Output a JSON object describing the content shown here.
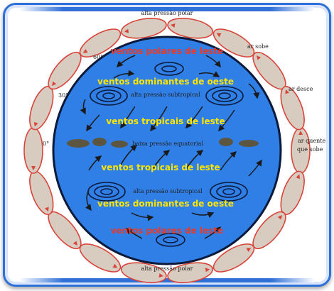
{
  "labels": {
    "top_pressure": "alta pressão polar",
    "bottom_pressure": "alta pressão polar",
    "air_rises": "ar sobe",
    "air_descends": "ar desce",
    "warm_air_rises_1": "ar quente",
    "warm_air_rises_2": "que sobe",
    "lat_60_top": "60°",
    "lat_30_top": "30°",
    "lat_0": "0°",
    "polar_winds_top": "ventos polares de leste",
    "westerlies_top": "ventos dominantes de oeste",
    "subtropical_high_top": "alta pressão subtropical",
    "trade_winds_top": "ventos tropicais de leste",
    "equatorial_low": "baixa pressão equatorial",
    "trade_winds_bottom": "ventos tropicais de leste",
    "subtropical_high_bottom": "alta pressão subtropical",
    "westerlies_bottom": "ventos dominantes de oeste",
    "polar_winds_bottom": "ventos polares de leste"
  },
  "colors": {
    "ocean": "#2f7fe6",
    "cell_fill": "#d8cbbf",
    "cell_outline": "#d9443a",
    "wind_label": "#ffe600",
    "polar_label": "#e83a2a",
    "frame": "#2f6fd8"
  }
}
